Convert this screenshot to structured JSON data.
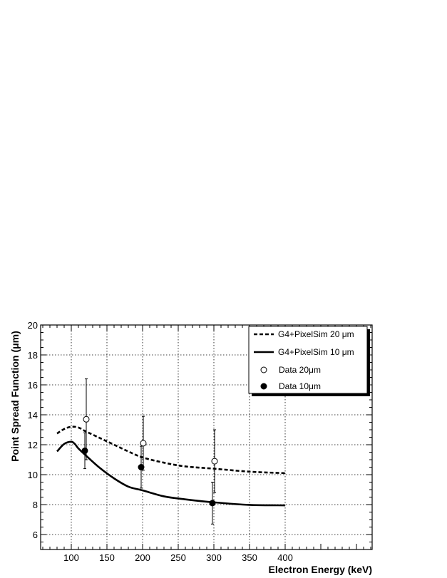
{
  "chart_data": {
    "type": "line",
    "xlabel": "Electron Energy (keV)",
    "ylabel": "Point Spread Function (μm)",
    "xlim": [
      57,
      522
    ],
    "ylim": [
      5,
      20
    ],
    "x_ticks": [
      100,
      150,
      200,
      250,
      300,
      350,
      400
    ],
    "y_ticks": [
      6,
      8,
      10,
      12,
      14,
      16,
      18,
      20
    ],
    "grid": true,
    "legend_position": "top-right",
    "series": [
      {
        "name": "G4+PixelSim 20 μm",
        "style": "dashed",
        "points": [
          [
            80,
            12.75
          ],
          [
            90,
            13.05
          ],
          [
            100,
            13.2
          ],
          [
            110,
            13.15
          ],
          [
            120,
            12.9
          ],
          [
            140,
            12.45
          ],
          [
            160,
            12.0
          ],
          [
            180,
            11.55
          ],
          [
            200,
            11.15
          ],
          [
            230,
            10.8
          ],
          [
            260,
            10.55
          ],
          [
            300,
            10.4
          ],
          [
            350,
            10.2
          ],
          [
            400,
            10.1
          ]
        ]
      },
      {
        "name": "G4+PixelSim 10 μm",
        "style": "solid",
        "points": [
          [
            80,
            11.55
          ],
          [
            90,
            12.05
          ],
          [
            100,
            12.2
          ],
          [
            105,
            12.05
          ],
          [
            110,
            11.75
          ],
          [
            120,
            11.3
          ],
          [
            140,
            10.45
          ],
          [
            160,
            9.75
          ],
          [
            180,
            9.2
          ],
          [
            200,
            8.95
          ],
          [
            230,
            8.55
          ],
          [
            260,
            8.35
          ],
          [
            300,
            8.15
          ],
          [
            350,
            7.98
          ],
          [
            400,
            7.95
          ]
        ]
      },
      {
        "name": "Data 20μm",
        "style": "open-circle",
        "points": [
          [
            121,
            13.7
          ],
          [
            201,
            12.1
          ],
          [
            301,
            10.9
          ]
        ],
        "errors": [
          2.7,
          1.8,
          2.1
        ]
      },
      {
        "name": "Data 10μm",
        "style": "filled-circle",
        "points": [
          [
            119,
            11.6
          ],
          [
            198,
            10.5
          ],
          [
            298,
            8.1
          ]
        ],
        "errors": [
          1.2,
          1.4,
          1.4
        ]
      }
    ]
  }
}
